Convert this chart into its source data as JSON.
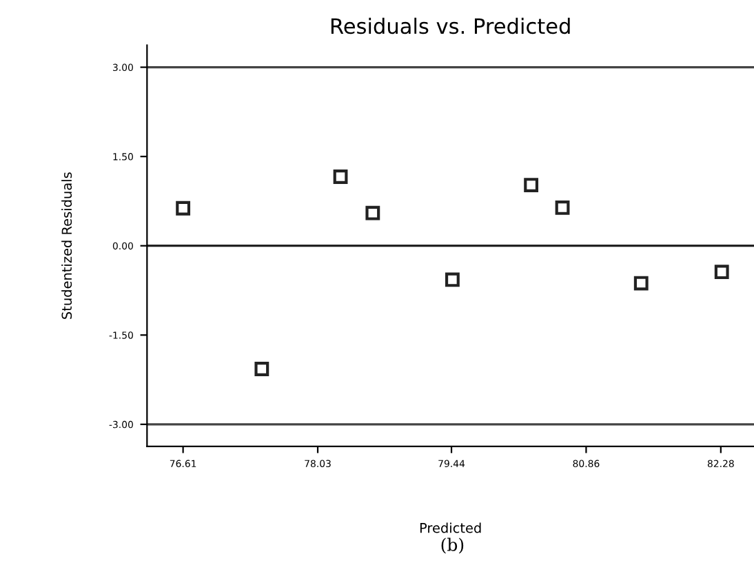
{
  "chart_data": {
    "type": "scatter",
    "title": "Residuals vs. Predicted",
    "xlabel": "Predicted",
    "ylabel": "Studentized Residuals",
    "annotations": [
      "(b)"
    ],
    "x": [
      76.61,
      77.44,
      78.27,
      78.61,
      79.45,
      80.28,
      80.61,
      81.44,
      82.29
    ],
    "series": [
      {
        "color": "#222222",
        "values": [
          0.63,
          -2.07,
          1.16,
          0.55,
          -0.57,
          1.02,
          0.64,
          -0.63,
          -0.44
        ]
      }
    ],
    "marker": "square",
    "grid": false,
    "legend": false,
    "xlim": [
      76.23,
      82.63
    ],
    "ylim": [
      -3.37,
      3.37
    ],
    "xticks": [
      76.61,
      78.03,
      79.44,
      80.86,
      82.28
    ],
    "yticks": [
      {
        "value": 3,
        "label": "3.00"
      },
      {
        "value": 1.5,
        "label": "1.50"
      },
      {
        "value": 0,
        "label": "0.00"
      },
      {
        "value": -1.5,
        "label": "-1.50"
      },
      {
        "value": -3,
        "label": "-3.00"
      }
    ],
    "ref_lines": [
      {
        "axis": "y",
        "value": 3,
        "color": "#444444"
      },
      {
        "axis": "y",
        "value": 0,
        "color": "#222222"
      },
      {
        "axis": "y",
        "value": -3,
        "color": "#444444"
      }
    ]
  }
}
